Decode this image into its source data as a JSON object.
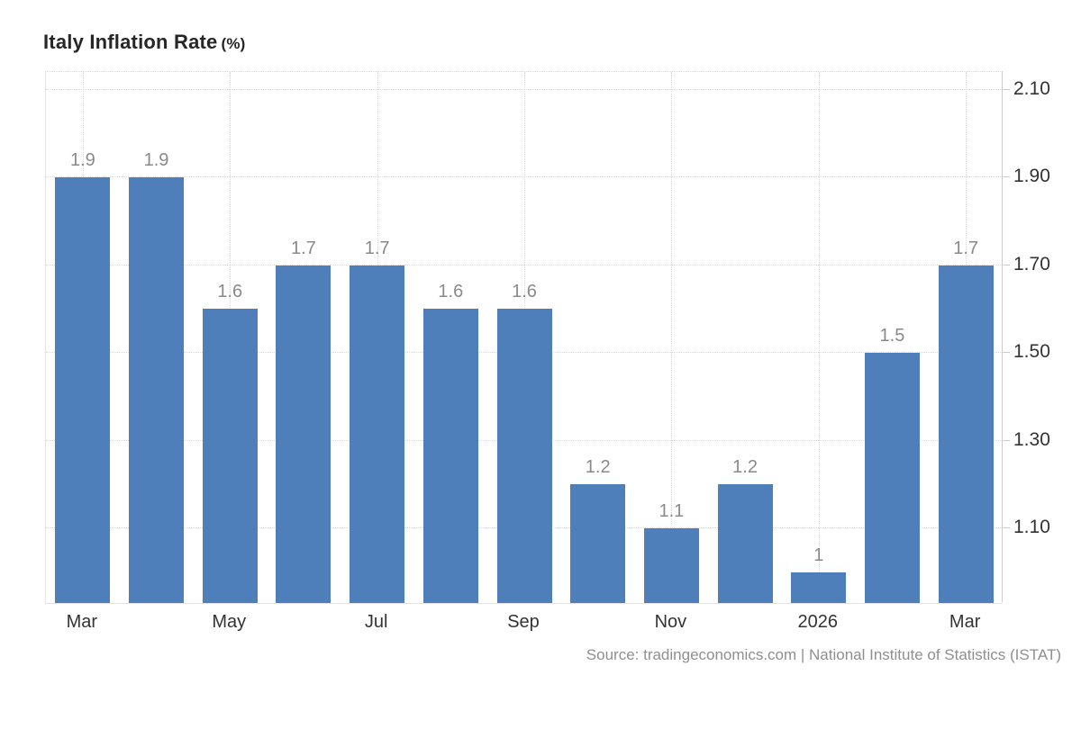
{
  "page": {
    "background": "#ffffff"
  },
  "chart_data": {
    "type": "bar",
    "title": "Italy Inflation Rate",
    "title_unit": "(%)",
    "values": [
      1.9,
      1.9,
      1.6,
      1.7,
      1.7,
      1.6,
      1.6,
      1.2,
      1.1,
      1.2,
      1,
      1.5,
      1.7
    ],
    "bar_labels": [
      "1.9",
      "1.9",
      "1.6",
      "1.7",
      "1.7",
      "1.6",
      "1.6",
      "1.2",
      "1.1",
      "1.2",
      "1",
      "1.5",
      "1.7"
    ],
    "x_ticks": [
      {
        "index": 0,
        "label": "Mar"
      },
      {
        "index": 2,
        "label": "May"
      },
      {
        "index": 4,
        "label": "Jul"
      },
      {
        "index": 6,
        "label": "Sep"
      },
      {
        "index": 8,
        "label": "Nov"
      },
      {
        "index": 10,
        "label": "2026"
      },
      {
        "index": 12,
        "label": "Mar"
      }
    ],
    "y_ticks": [
      {
        "value": 1.1,
        "label": "1.10"
      },
      {
        "value": 1.3,
        "label": "1.30"
      },
      {
        "value": 1.5,
        "label": "1.50"
      },
      {
        "value": 1.7,
        "label": "1.70"
      },
      {
        "value": 1.9,
        "label": "1.90"
      },
      {
        "value": 2.1,
        "label": "2.10"
      }
    ],
    "ylim": [
      0.93,
      2.14
    ],
    "y_axis_position": "right",
    "grid": "dotted",
    "legend": "none",
    "colors": {
      "bar": "#4e7fba",
      "value_label": "#8a8a8a",
      "axis_label": "#333333",
      "gridline": "#d9d9d9",
      "axis_line": "#cccccc",
      "plot_border": "#e6e6e6",
      "title": "#262626",
      "source": "#8f8f8f"
    }
  },
  "source": {
    "text": "Source: tradingeconomics.com | National Institute of Statistics (ISTAT)"
  }
}
